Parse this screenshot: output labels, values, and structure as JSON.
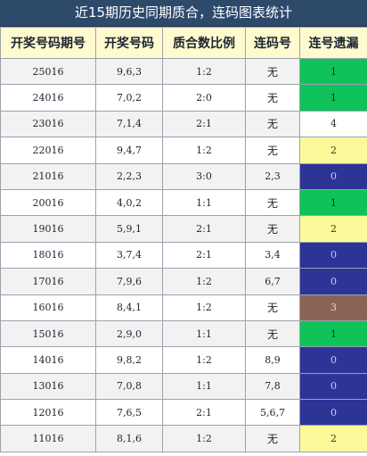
{
  "title": "近15期历史同期质合，连码图表统计",
  "headers": [
    "开奖号码期号",
    "开奖号码",
    "质合数比例",
    "连码号",
    "连号遗漏"
  ],
  "colors": {
    "green": "#10c25a",
    "yellow": "#fbf99a",
    "blue": "#2e3396",
    "brown": "#8a6354",
    "white": "#ffffff"
  },
  "rows": [
    {
      "period": "25016",
      "numbers": "9,6,3",
      "ratio": "1:2",
      "consec": "无",
      "miss": "1",
      "color": "green"
    },
    {
      "period": "24016",
      "numbers": "7,0,2",
      "ratio": "2:0",
      "consec": "无",
      "miss": "1",
      "color": "green"
    },
    {
      "period": "23016",
      "numbers": "7,1,4",
      "ratio": "2:1",
      "consec": "无",
      "miss": "4",
      "color": "white"
    },
    {
      "period": "22016",
      "numbers": "9,4,7",
      "ratio": "1:2",
      "consec": "无",
      "miss": "2",
      "color": "yellow"
    },
    {
      "period": "21016",
      "numbers": "2,2,3",
      "ratio": "3:0",
      "consec": "2,3",
      "miss": "0",
      "color": "blue"
    },
    {
      "period": "20016",
      "numbers": "4,0,2",
      "ratio": "1:1",
      "consec": "无",
      "miss": "1",
      "color": "green"
    },
    {
      "period": "19016",
      "numbers": "5,9,1",
      "ratio": "2:1",
      "consec": "无",
      "miss": "2",
      "color": "yellow"
    },
    {
      "period": "18016",
      "numbers": "3,7,4",
      "ratio": "2:1",
      "consec": "3,4",
      "miss": "0",
      "color": "blue"
    },
    {
      "period": "17016",
      "numbers": "7,9,6",
      "ratio": "1:2",
      "consec": "6,7",
      "miss": "0",
      "color": "blue"
    },
    {
      "period": "16016",
      "numbers": "8,4,1",
      "ratio": "1:2",
      "consec": "无",
      "miss": "3",
      "color": "brown"
    },
    {
      "period": "15016",
      "numbers": "2,9,0",
      "ratio": "1:1",
      "consec": "无",
      "miss": "1",
      "color": "green"
    },
    {
      "period": "14016",
      "numbers": "9,8,2",
      "ratio": "1:2",
      "consec": "8,9",
      "miss": "0",
      "color": "blue"
    },
    {
      "period": "13016",
      "numbers": "7,0,8",
      "ratio": "1:1",
      "consec": "7,8",
      "miss": "0",
      "color": "blue"
    },
    {
      "period": "12016",
      "numbers": "7,6,5",
      "ratio": "2:1",
      "consec": "5,6,7",
      "miss": "0",
      "color": "blue"
    },
    {
      "period": "11016",
      "numbers": "8,1,6",
      "ratio": "1:2",
      "consec": "无",
      "miss": "2",
      "color": "yellow"
    }
  ]
}
